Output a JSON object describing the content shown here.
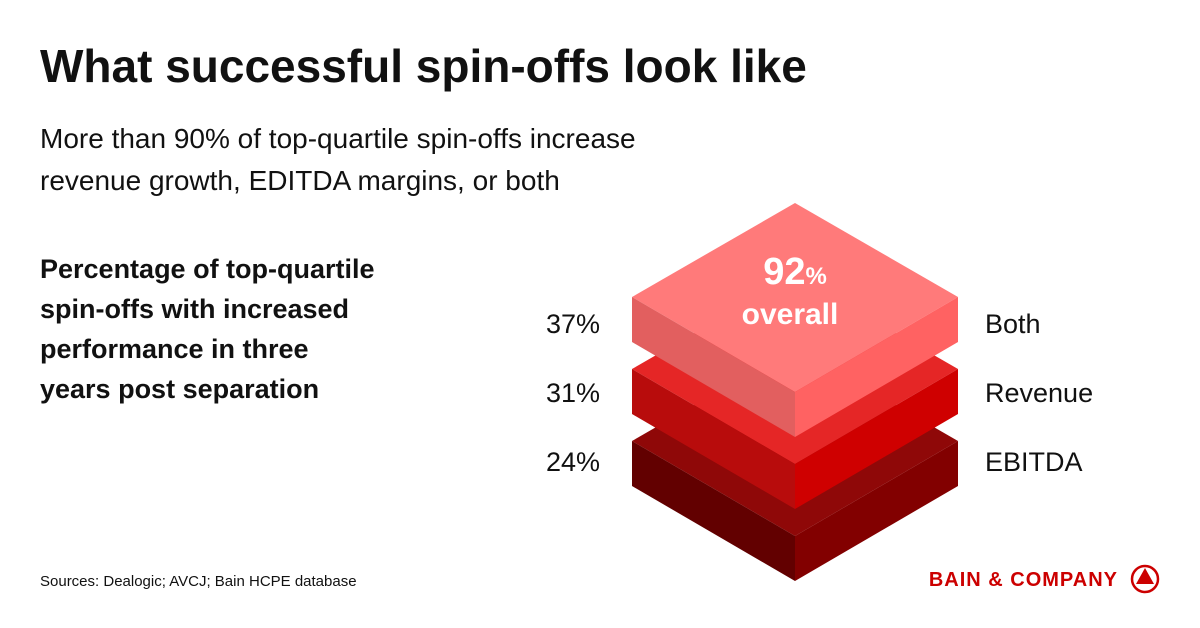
{
  "header": {
    "title": "What successful spin-offs look like",
    "subtitle_lines": [
      "More than 90% of top-quartile spin-offs increase",
      "revenue growth, EDITDA margins, or both"
    ]
  },
  "heading_lines": [
    "Percentage of top-quartile",
    "spin-offs with increased",
    "performance in three",
    "years post separation"
  ],
  "overall": {
    "value": "92",
    "unit": "%",
    "label": "overall"
  },
  "layers": [
    {
      "percent": "37%",
      "label": "Both"
    },
    {
      "percent": "31%",
      "label": "Revenue"
    },
    {
      "percent": "24%",
      "label": "EBITDA"
    }
  ],
  "footer": {
    "source": "Sources: Dealogic; AVCJ; Bain HCPE database",
    "brand": "BAIN & COMPANY"
  }
}
